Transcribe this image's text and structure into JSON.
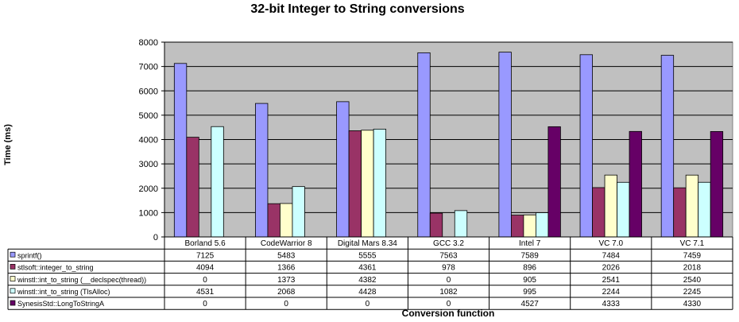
{
  "chart_data": {
    "type": "bar",
    "title": "32-bit Integer to String conversions",
    "xlabel": "Conversion function",
    "ylabel": "Time (ms)",
    "ylim": [
      0,
      8000
    ],
    "yticks": [
      0,
      1000,
      2000,
      3000,
      4000,
      5000,
      6000,
      7000,
      8000
    ],
    "grid": true,
    "legend": "data-table",
    "categories": [
      "Borland 5.6",
      "CodeWarrior 8",
      "Digital Mars 8.34",
      "GCC 3.2",
      "Intel 7",
      "VC 7.0",
      "VC 7.1"
    ],
    "series": [
      {
        "name": "sprintf()",
        "color": "#9999ff",
        "values": [
          7125,
          5483,
          5555,
          7563,
          7589,
          7484,
          7459
        ]
      },
      {
        "name": "stlsoft::integer_to_string",
        "color": "#993366",
        "values": [
          4094,
          1366,
          4361,
          978,
          896,
          2026,
          2018
        ]
      },
      {
        "name": "winstl::int_to_string (__declspec(thread))",
        "color": "#ffffcc",
        "values": [
          0,
          1373,
          4382,
          0,
          905,
          2541,
          2540
        ]
      },
      {
        "name": "winstl::int_to_string (TlsAlloc)",
        "color": "#ccffff",
        "values": [
          4531,
          2068,
          4428,
          1082,
          995,
          2244,
          2245
        ]
      },
      {
        "name": "SynesisStd::LongToStringA",
        "color": "#660066",
        "values": [
          0,
          0,
          0,
          0,
          4527,
          4333,
          4330
        ]
      }
    ],
    "plot_background": "#c0c0c0"
  }
}
